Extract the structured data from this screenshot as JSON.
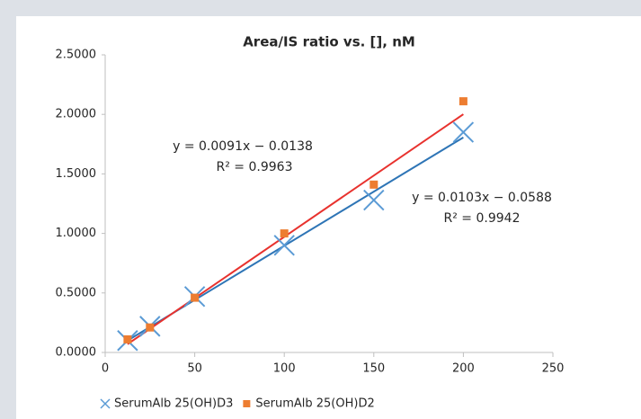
{
  "chart_data": {
    "type": "scatter",
    "title": "Area/IS ratio vs. [], nM",
    "x": [
      12.5,
      25,
      50,
      100,
      150,
      200
    ],
    "series": [
      {
        "name": "SerumAlb 25(OH)D3",
        "color": "#5b9bd5",
        "marker": "x",
        "line_color": "#2e75b6",
        "values": [
          0.1,
          0.22,
          0.47,
          0.9,
          1.28,
          1.85
        ],
        "trendline": {
          "slope": 0.0091,
          "intercept": -0.0138,
          "r2": 0.9963,
          "equation_label": "y = 0.0091x − 0.0138",
          "r2_label": "R² = 0.9963"
        }
      },
      {
        "name": "SerumAlb 25(OH)D2",
        "color": "#ed7d31",
        "marker": "square",
        "line_color": "#e8322e",
        "values": [
          0.11,
          0.21,
          0.46,
          1.0,
          1.41,
          2.11
        ],
        "trendline": {
          "slope": 0.0103,
          "intercept": -0.0588,
          "r2": 0.9942,
          "equation_label": "y = 0.0103x − 0.0588",
          "r2_label": "R² = 0.9942"
        }
      }
    ],
    "xlim": [
      0,
      250
    ],
    "xticks": [
      0,
      50,
      100,
      150,
      200,
      250
    ],
    "ylim": [
      0,
      2.5
    ],
    "yticks": [
      {
        "value": 0,
        "label": "0.0000"
      },
      {
        "value": 0.5,
        "label": "0.5000"
      },
      {
        "value": 1,
        "label": "1.0000"
      },
      {
        "value": 1.5,
        "label": "1.5000"
      },
      {
        "value": 2,
        "label": "2.0000"
      },
      {
        "value": 2.5,
        "label": "2.5000"
      }
    ],
    "grid": false,
    "legend": "bottom"
  }
}
